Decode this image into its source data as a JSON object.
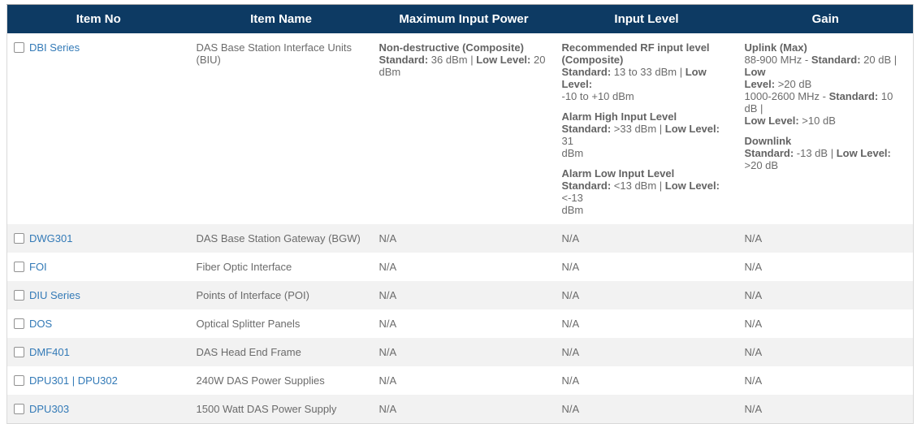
{
  "table": {
    "columns": [
      {
        "key": "item_no",
        "label": "Item No"
      },
      {
        "key": "item_name",
        "label": "Item Name"
      },
      {
        "key": "max_input_power",
        "label": "Maximum Input Power"
      },
      {
        "key": "input_level",
        "label": "Input Level"
      },
      {
        "key": "gain",
        "label": "Gain"
      }
    ],
    "colors": {
      "header_bg": "#0d3a63",
      "header_text": "#ffffff",
      "link": "#337ab7",
      "body_text": "#6b6b6b",
      "row_alt_bg": "#f2f2f2",
      "border": "#d9d9d9"
    },
    "rows": [
      {
        "item_no": "DBI Series",
        "checked": false,
        "item_name": "DAS Base Station Interface Units (BIU)",
        "max_input_power": [
          [
            [
              {
                "t": "Non-destructive (Composite)",
                "b": true
              }
            ],
            [
              {
                "t": "Standard:",
                "b": true
              },
              " 36 dBm | ",
              {
                "t": "Low Level:",
                "b": true
              },
              " 20"
            ],
            [
              "dBm"
            ]
          ]
        ],
        "input_level": [
          [
            [
              {
                "t": "Recommended RF input level",
                "b": true
              }
            ],
            [
              {
                "t": "(Composite)",
                "b": true
              }
            ],
            [
              {
                "t": "Standard:",
                "b": true
              },
              " 13 to 33 dBm | ",
              {
                "t": "Low Level:",
                "b": true
              }
            ],
            [
              "-10 to +10 dBm"
            ]
          ],
          [
            [
              {
                "t": "Alarm High Input Level",
                "b": true
              }
            ],
            [
              {
                "t": "Standard:",
                "b": true
              },
              " >33 dBm | ",
              {
                "t": "Low Level:",
                "b": true
              },
              " 31"
            ],
            [
              "dBm"
            ]
          ],
          [
            [
              {
                "t": "Alarm Low Input Level",
                "b": true
              }
            ],
            [
              {
                "t": "Standard:",
                "b": true
              },
              " <13 dBm | ",
              {
                "t": "Low Level:",
                "b": true
              },
              " <-13"
            ],
            [
              "dBm"
            ]
          ]
        ],
        "gain": [
          [
            [
              {
                "t": "Uplink (Max)",
                "b": true
              }
            ],
            [
              "88-900 MHz - ",
              {
                "t": "Standard:",
                "b": true
              },
              " 20 dB | ",
              {
                "t": "Low",
                "b": true
              }
            ],
            [
              {
                "t": "Level:",
                "b": true
              },
              " >20 dB"
            ],
            [
              "1000-2600 MHz - ",
              {
                "t": "Standard:",
                "b": true
              },
              " 10 dB |"
            ],
            [
              {
                "t": "Low Level:",
                "b": true
              },
              " >10 dB"
            ]
          ],
          [
            [
              {
                "t": "Downlink",
                "b": true
              }
            ],
            [
              {
                "t": "Standard:",
                "b": true
              },
              " -13 dB | ",
              {
                "t": "Low Level:",
                "b": true
              },
              " >20 dB"
            ]
          ]
        ]
      },
      {
        "item_no": "DWG301",
        "checked": false,
        "item_name": "DAS Base Station Gateway (BGW)",
        "max_input_power": "N/A",
        "input_level": "N/A",
        "gain": "N/A"
      },
      {
        "item_no": "FOI",
        "checked": false,
        "item_name": "Fiber Optic Interface",
        "max_input_power": "N/A",
        "input_level": "N/A",
        "gain": "N/A"
      },
      {
        "item_no": "DIU Series",
        "checked": false,
        "item_name": "Points of Interface (POI)",
        "max_input_power": "N/A",
        "input_level": "N/A",
        "gain": "N/A"
      },
      {
        "item_no": "DOS",
        "checked": false,
        "item_name": "Optical Splitter Panels",
        "max_input_power": "N/A",
        "input_level": "N/A",
        "gain": "N/A"
      },
      {
        "item_no": "DMF401",
        "checked": false,
        "item_name": "DAS Head End Frame",
        "max_input_power": "N/A",
        "input_level": "N/A",
        "gain": "N/A"
      },
      {
        "item_no": "DPU301 | DPU302",
        "checked": false,
        "item_name": "240W DAS Power Supplies",
        "max_input_power": "N/A",
        "input_level": "N/A",
        "gain": "N/A"
      },
      {
        "item_no": "DPU303",
        "checked": false,
        "item_name": "1500 Watt DAS Power Supply",
        "max_input_power": "N/A",
        "input_level": "N/A",
        "gain": "N/A"
      }
    ]
  }
}
